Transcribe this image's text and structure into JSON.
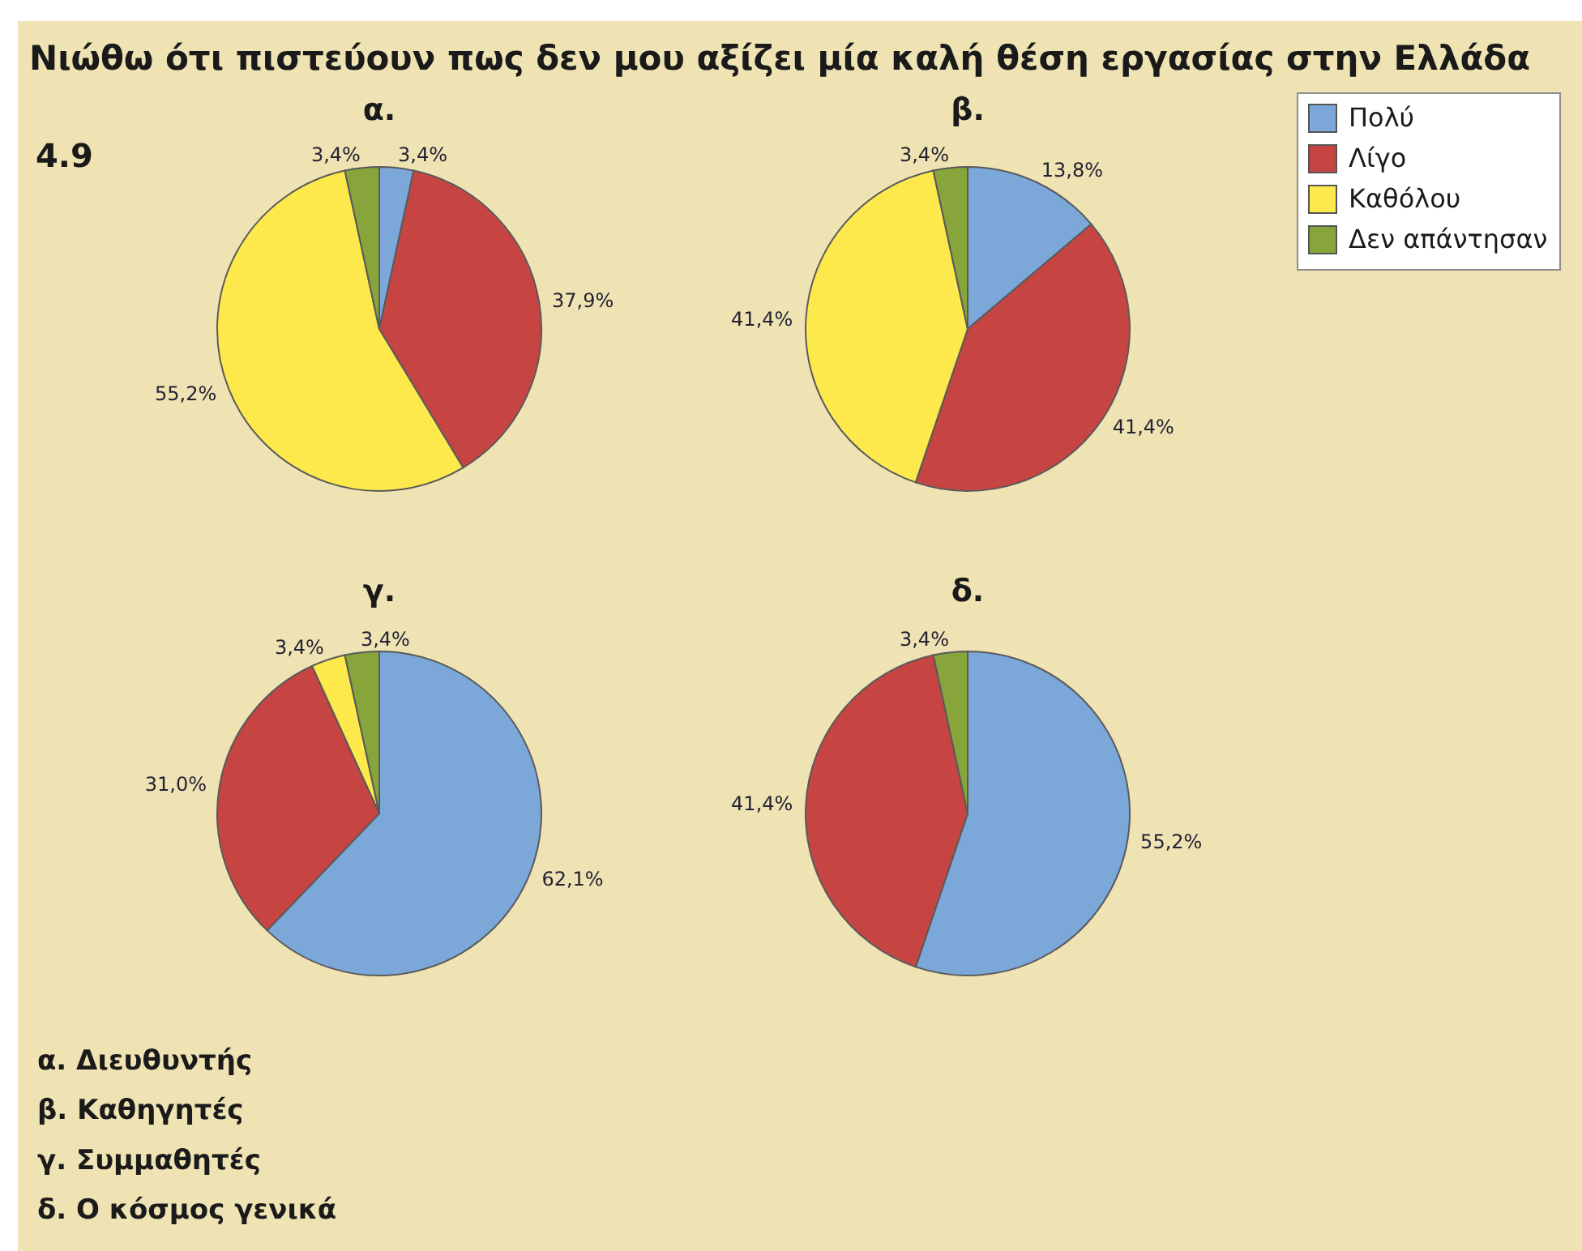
{
  "chart_data": [
    {
      "type": "other",
      "title": "Νιώθω ότι πιστεύουν πως δεν μου αξίζει μία καλή θέση εργασίας στην Ελλάδα",
      "annotations": [
        "4.9",
        "α. Διευθυντής",
        "β. Καθηγητές",
        "γ. Συμμαθητές",
        "δ. Ο κόσμος γενικά"
      ]
    },
    {
      "type": "pie",
      "title": "α.",
      "categories": [
        null,
        null,
        null,
        null
      ],
      "values": [
        3.4,
        37.9,
        55.2,
        3.4
      ],
      "colors": [
        "#7ba7d9",
        "#c64543",
        "#fde94b",
        "#87a53b"
      ],
      "value_labels": [
        "3,4%",
        "37,9%",
        "55,2%",
        "3,4%"
      ]
    },
    {
      "type": "pie",
      "title": "β.",
      "categories": [
        "Πολύ",
        "Λίγο",
        "Καθόλου",
        "Δεν απάντησαν"
      ],
      "values": [
        13.8,
        41.4,
        41.4,
        3.4
      ],
      "colors": [
        "#7ba7d9",
        "#c64543",
        "#fde94b",
        "#87a53b"
      ],
      "value_labels": [
        "13,8%",
        "41,4%",
        "41,4%",
        "3,4%"
      ],
      "legend": "top right"
    },
    {
      "type": "pie",
      "title": "γ.",
      "categories": [
        null,
        null,
        null,
        null
      ],
      "values": [
        62.1,
        31.0,
        3.4,
        3.4
      ],
      "colors": [
        "#7ba7d9",
        "#c64543",
        "#fde94b",
        "#87a53b"
      ],
      "value_labels": [
        "62,1%",
        "31,0%",
        "3,4%",
        "3,4%"
      ]
    },
    {
      "type": "pie",
      "title": "δ.",
      "categories": [
        null,
        null,
        null
      ],
      "values": [
        55.2,
        41.4,
        3.4
      ],
      "colors": [
        "#7ba7d9",
        "#c64543",
        "#87a53b"
      ],
      "value_labels": [
        "55,2%",
        "41,4%",
        "3,4%"
      ]
    }
  ]
}
